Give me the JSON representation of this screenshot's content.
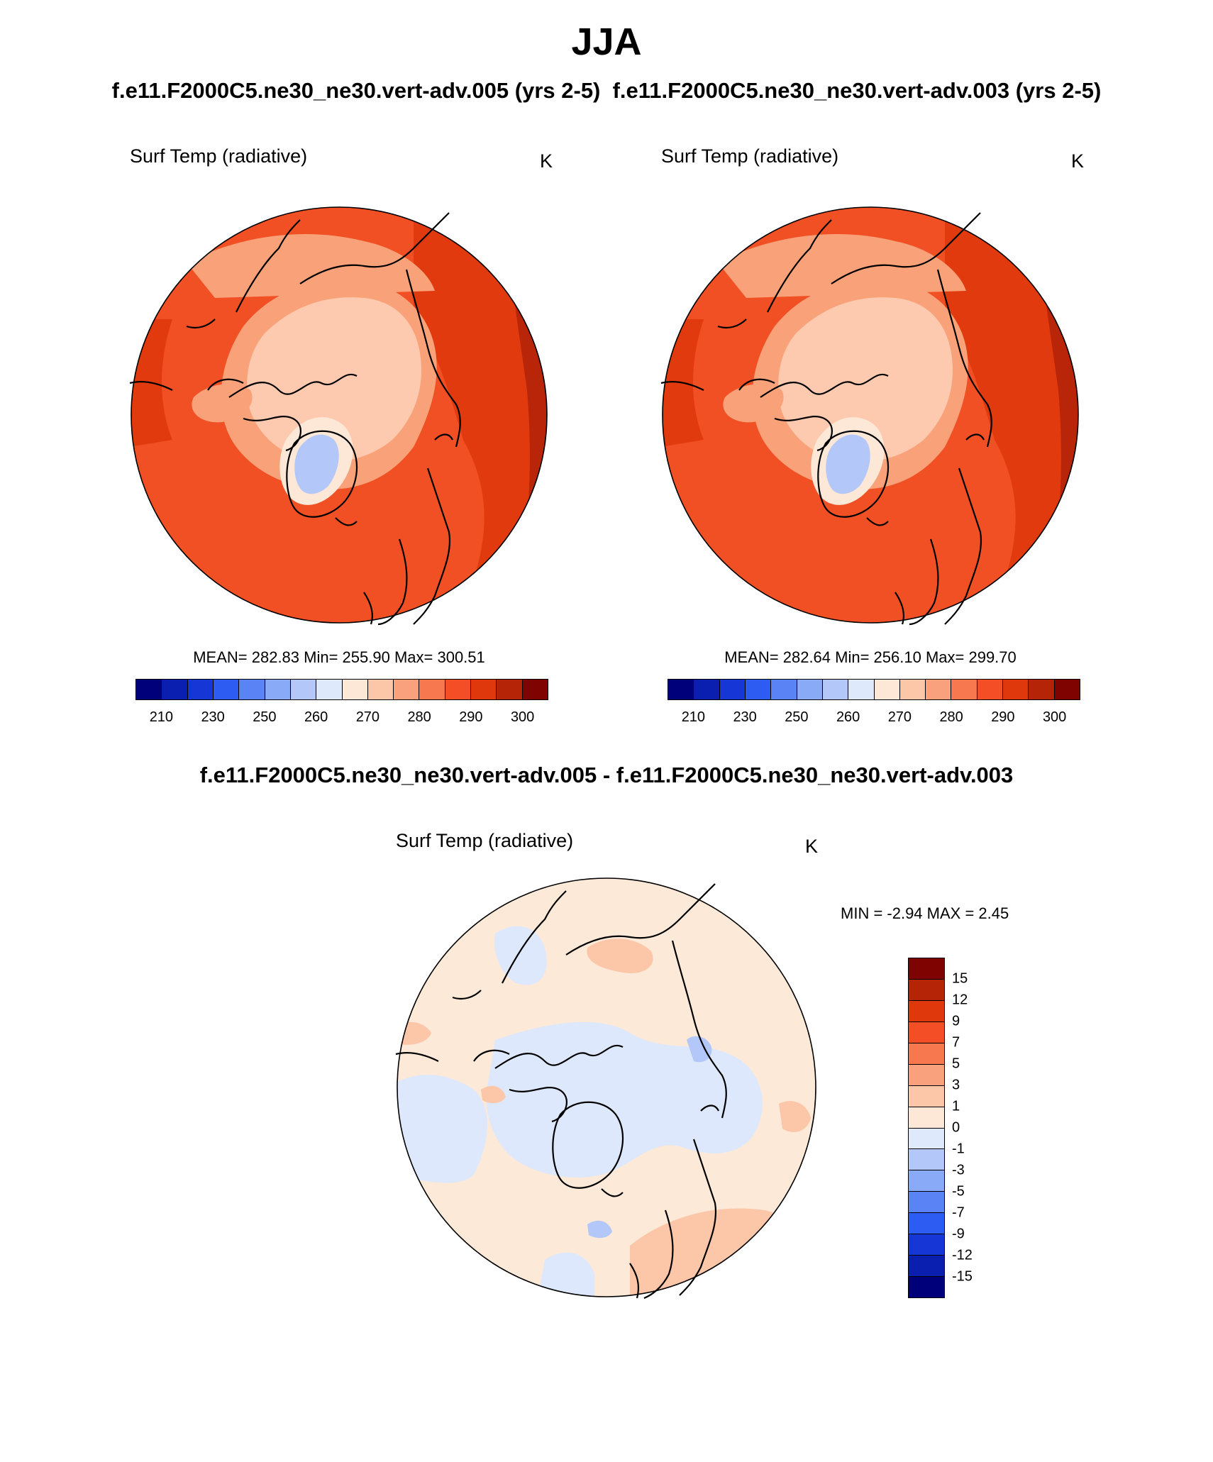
{
  "header": {
    "title": "JJA",
    "subtitle": "f.e11.F2000C5.ne30_ne30.vert-adv.005 (yrs 2-5)  f.e11.F2000C5.ne30_ne30.vert-adv.003 (yrs 2-5)",
    "diff_title": "f.e11.F2000C5.ne30_ne30.vert-adv.005 - f.e11.F2000C5.ne30_ne30.vert-adv.003"
  },
  "panels": [
    {
      "label_left": "Surf Temp (radiative)",
      "label_right": "K",
      "stats": "MEAN= 282.83  Min= 255.90  Max= 300.51"
    },
    {
      "label_left": "Surf Temp (radiative)",
      "label_right": "K",
      "stats": "MEAN= 282.64  Min= 256.10  Max= 299.70"
    }
  ],
  "diff_panel": {
    "label_left": "Surf Temp (radiative)",
    "label_right": "K",
    "stats": "MIN =  -2.94 MAX =   2.45"
  },
  "colorbar_abs": {
    "colors": [
      "#00007a",
      "#0a1fb0",
      "#1637d6",
      "#2d5cf2",
      "#5a84f5",
      "#88aaf7",
      "#b3c8f9",
      "#dfe9fc",
      "#fde8d8",
      "#fcc6a8",
      "#f9a07c",
      "#f7784f",
      "#f44e27",
      "#e0380d",
      "#b52406",
      "#7f0300"
    ],
    "tick_labels": [
      "210",
      "230",
      "250",
      "260",
      "270",
      "280",
      "290",
      "300"
    ]
  },
  "colorbar_diff": {
    "colors": [
      "#00007a",
      "#0a1fb0",
      "#1637d6",
      "#2d5cf2",
      "#5a84f5",
      "#88aaf7",
      "#b3c8f9",
      "#dfe9fc",
      "#fde8d8",
      "#fcc6a8",
      "#f9a07c",
      "#f7784f",
      "#f44e27",
      "#e0380d",
      "#b52406",
      "#7f0300"
    ],
    "tick_labels": [
      "-15",
      "-12",
      "-9",
      "-7",
      "-5",
      "-3",
      "-1",
      "0",
      "1",
      "3",
      "5",
      "7",
      "9",
      "12",
      "15"
    ]
  },
  "map_colors": {
    "ocean_warm": "#f15024",
    "ocean_hot": "#e03a0e",
    "edge_dark": "#b82508",
    "arctic": "#fdcab0",
    "mid": "#f9a27a",
    "greenland_outer": "#fde8d8",
    "greenland_inner": "#b3c8f9",
    "diff_base": "#fde9d8",
    "diff_neg": "#dde8fc",
    "diff_neg2": "#b3c8f9",
    "diff_pos": "#fcc6a8"
  }
}
